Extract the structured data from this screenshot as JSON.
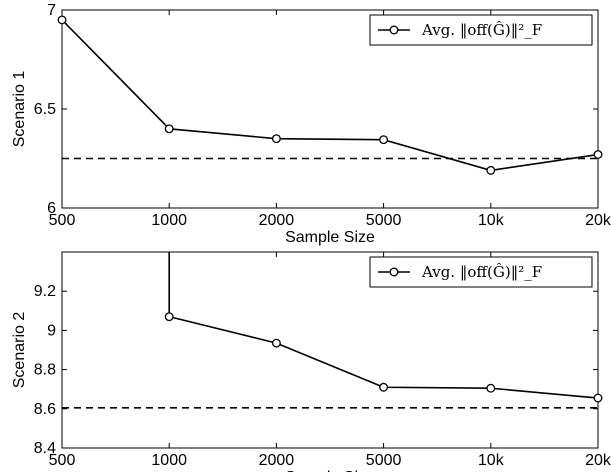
{
  "chart_data": [
    {
      "type": "line",
      "ylabel": "Scenario 1",
      "xlabel": "Sample Size",
      "categories": [
        "500",
        "1000",
        "2000",
        "5000",
        "10k",
        "20k"
      ],
      "ylim": [
        6,
        7
      ],
      "yticks": [
        6,
        6.5,
        7
      ],
      "ytick_labels": [
        "6",
        "6.5",
        "7"
      ],
      "series": [
        {
          "name": "Avg. ‖off(Ĝ)‖²_F",
          "values": [
            6.95,
            6.4,
            6.35,
            6.345,
            6.19,
            6.27
          ],
          "style": "solid",
          "marker": "circle"
        },
        {
          "values": [
            6.25,
            6.25,
            6.25,
            6.25,
            6.25,
            6.25
          ],
          "style": "dashed",
          "marker": "none"
        }
      ],
      "legend": "top-right",
      "grid": false
    },
    {
      "type": "line",
      "ylabel": "Scenario 2",
      "xlabel": "Sample Size",
      "categories": [
        "500",
        "1000",
        "2000",
        "5000",
        "10k",
        "20k"
      ],
      "ylim": [
        8.4,
        9.4
      ],
      "yticks": [
        8.4,
        8.6,
        8.8,
        9,
        9.2
      ],
      "ytick_labels": [
        "8.4",
        "8.6",
        "8.8",
        "9",
        "9.2"
      ],
      "series": [
        {
          "name": "Avg. ‖off(Ĝ)‖²_F",
          "values": [
            null,
            9.07,
            8.935,
            8.71,
            8.705,
            8.655
          ],
          "style": "solid",
          "marker": "circle",
          "note": "line enters from above the axis at 1000"
        },
        {
          "values": [
            8.605,
            8.605,
            8.605,
            8.605,
            8.605,
            8.605
          ],
          "style": "dashed",
          "marker": "none"
        }
      ],
      "legend": "top-right",
      "grid": false
    }
  ]
}
